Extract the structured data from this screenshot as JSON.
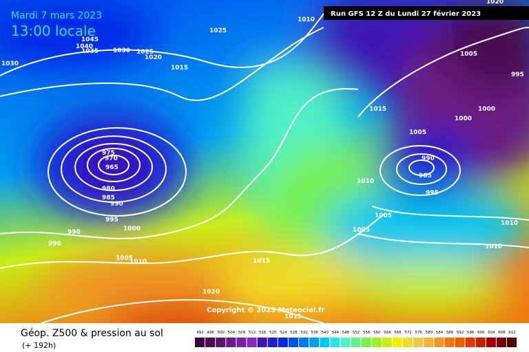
{
  "header": {
    "date": "Mardi 7 mars 2023",
    "time": "13:00 locale",
    "run": "Run GFS 12 Z du Lundi 27 février 2023"
  },
  "isobar_labels": [
    "1010",
    "1025",
    "1045",
    "1040",
    "1035",
    "1030",
    "1025",
    "1020",
    "1015",
    "1030",
    "1020",
    "1005",
    "995",
    "1015",
    "1000",
    "1000",
    "1005",
    "990",
    "985",
    "1010",
    "995",
    "975",
    "970",
    "965",
    "980",
    "985",
    "990",
    "995",
    "1000",
    "990",
    "990",
    "1005",
    "1010",
    "1015",
    "1005",
    "1005",
    "1010",
    "1010",
    "1020",
    "1015"
  ],
  "copyright": "Copyright © 2023 Meteociel.fr",
  "footer": {
    "title": "Géop. Z500 & pression au sol",
    "lead": "(+ 192h)"
  },
  "legend": {
    "values": [
      492,
      496,
      500,
      504,
      508,
      512,
      516,
      520,
      524,
      528,
      532,
      536,
      540,
      544,
      548,
      552,
      556,
      560,
      564,
      568,
      572,
      576,
      580,
      584,
      588,
      592,
      596,
      600,
      604,
      608,
      612
    ],
    "colors": [
      "#3a0a3a",
      "#4a0e50",
      "#5a1468",
      "#6a1a80",
      "#7a20a0",
      "#8a28c0",
      "#3c14b4",
      "#1e1ed2",
      "#0028e6",
      "#0050f0",
      "#0078f0",
      "#00a0f0",
      "#00c8f0",
      "#28e6e6",
      "#50f0c8",
      "#64f08c",
      "#78f050",
      "#a0f028",
      "#c8f014",
      "#f0f000",
      "#f0dc28",
      "#f0c850",
      "#f0b43c",
      "#f09628",
      "#f07814",
      "#f05a00",
      "#dc3c00",
      "#c81e00",
      "#a00000",
      "#780000",
      "#500000"
    ]
  }
}
